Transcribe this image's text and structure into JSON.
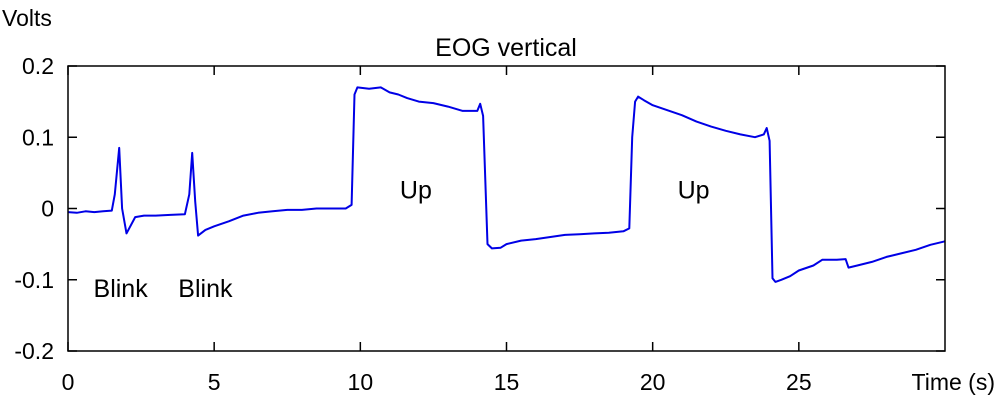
{
  "chart_data": {
    "type": "line",
    "title": "EOG vertical",
    "xlabel": "Time (s)",
    "ylabel": "Volts",
    "xlim": [
      0,
      30
    ],
    "ylim": [
      -0.2,
      0.2
    ],
    "x_ticks": [
      0,
      5,
      10,
      15,
      20,
      25
    ],
    "x_tick_labels": [
      "0",
      "5",
      "10",
      "15",
      "20",
      "25"
    ],
    "y_ticks": [
      0.2,
      0.1,
      0,
      -0.1,
      -0.2
    ],
    "y_tick_labels": [
      "0.2",
      "0.1",
      "0",
      "-0.1",
      "-0.2"
    ],
    "grid": false,
    "line_color": "#0000e6",
    "annotations": [
      {
        "text": "Blink",
        "x": 1.8,
        "y": -0.113
      },
      {
        "text": "Blink",
        "x": 4.7,
        "y": -0.113
      },
      {
        "text": "Up",
        "x": 11.9,
        "y": 0.025
      },
      {
        "text": "Up",
        "x": 21.4,
        "y": 0.025
      }
    ],
    "series": [
      {
        "x": [
          0,
          0.3,
          0.6,
          0.9,
          1.2,
          1.5,
          1.6,
          1.75,
          1.85,
          2.0,
          2.3,
          2.6,
          3.0,
          3.5,
          4.0,
          4.15,
          4.25,
          4.35,
          4.45,
          4.7,
          5.0,
          5.5,
          6.0,
          6.5,
          7.0,
          7.5,
          8.0,
          8.5,
          9.0,
          9.5,
          9.7,
          9.8,
          9.9,
          10.3,
          10.7,
          11.0,
          11.3,
          11.6,
          12.0,
          12.5,
          13.0,
          13.5,
          14.0,
          14.1,
          14.2,
          14.35,
          14.5,
          14.8,
          15.0,
          15.5,
          16.0,
          16.5,
          17.0,
          17.5,
          18.0,
          18.5,
          19.0,
          19.2,
          19.3,
          19.4,
          19.5,
          19.7,
          20.0,
          20.5,
          21.0,
          21.5,
          22.0,
          22.5,
          23.0,
          23.5,
          23.8,
          23.9,
          24.0,
          24.1,
          24.2,
          24.4,
          24.7,
          25.0,
          25.5,
          25.8,
          26.3,
          26.6,
          26.7,
          27.0,
          27.5,
          28.0,
          28.5,
          29.0,
          29.5,
          30.0
        ],
        "values": [
          -0.005,
          -0.006,
          -0.004,
          -0.005,
          -0.004,
          -0.003,
          0.02,
          0.085,
          0.0,
          -0.035,
          -0.012,
          -0.01,
          -0.01,
          -0.009,
          -0.008,
          0.02,
          0.078,
          0.01,
          -0.038,
          -0.03,
          -0.025,
          -0.018,
          -0.01,
          -0.006,
          -0.004,
          -0.002,
          -0.002,
          0.0,
          0.0,
          0.0,
          0.005,
          0.16,
          0.17,
          0.168,
          0.17,
          0.163,
          0.16,
          0.155,
          0.15,
          0.148,
          0.143,
          0.137,
          0.137,
          0.147,
          0.13,
          -0.05,
          -0.056,
          -0.055,
          -0.05,
          -0.045,
          -0.043,
          -0.04,
          -0.037,
          -0.036,
          -0.035,
          -0.034,
          -0.032,
          -0.028,
          0.1,
          0.15,
          0.157,
          0.152,
          0.145,
          0.138,
          0.131,
          0.122,
          0.115,
          0.109,
          0.104,
          0.1,
          0.104,
          0.113,
          0.095,
          -0.098,
          -0.103,
          -0.1,
          -0.095,
          -0.087,
          -0.08,
          -0.072,
          -0.072,
          -0.071,
          -0.083,
          -0.08,
          -0.075,
          -0.068,
          -0.063,
          -0.058,
          -0.051,
          -0.046
        ]
      }
    ]
  }
}
